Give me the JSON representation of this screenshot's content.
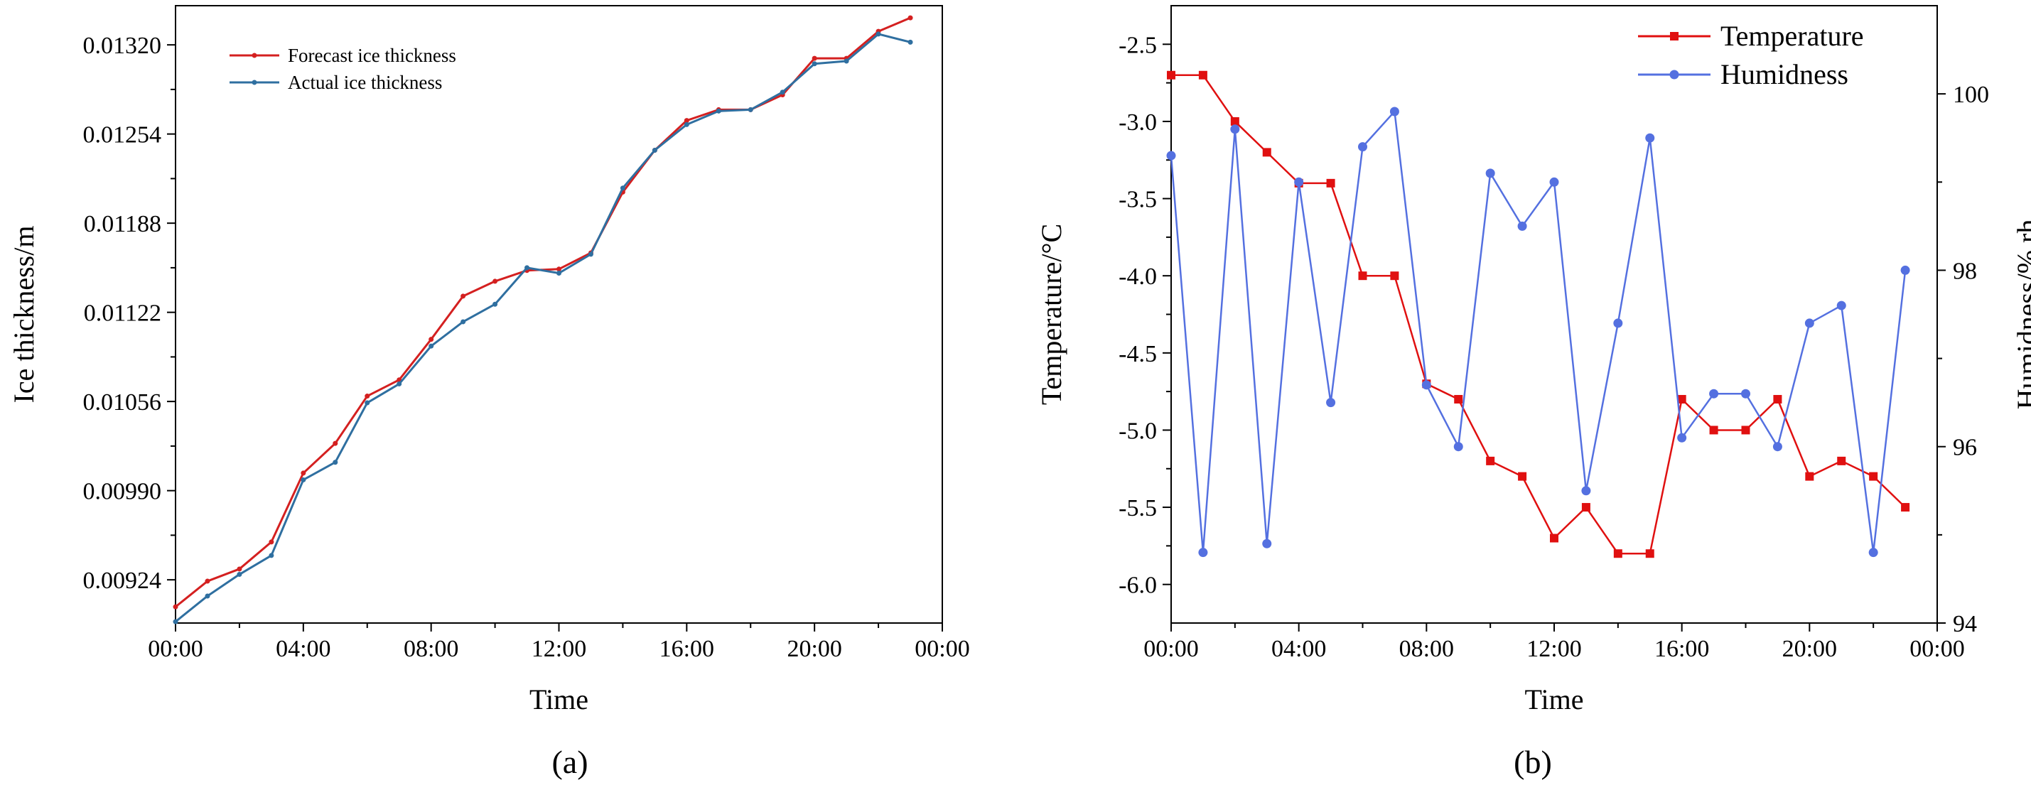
{
  "chart_data": [
    {
      "type": "line",
      "panel_label": "(a)",
      "xlabel": "Time",
      "ylabel": "Ice thickness/m",
      "x": [
        0,
        1,
        2,
        3,
        4,
        5,
        6,
        7,
        8,
        9,
        10,
        11,
        12,
        13,
        14,
        15,
        16,
        17,
        18,
        19,
        20,
        21,
        22,
        23
      ],
      "xlim": [
        0,
        24
      ],
      "x_ticks": [
        0,
        4,
        8,
        12,
        16,
        20,
        24
      ],
      "x_tick_labels": [
        "00:00",
        "04:00",
        "08:00",
        "12:00",
        "16:00",
        "20:00",
        "00:00"
      ],
      "ylim": [
        0.00892,
        0.01349
      ],
      "y_ticks": [
        0.00924,
        0.0099,
        0.01056,
        0.01122,
        0.01188,
        0.01254,
        0.0132
      ],
      "y_tick_labels": [
        "0.00924",
        "0.00990",
        "0.01056",
        "0.01122",
        "0.01188",
        "0.01254",
        "0.01320"
      ],
      "legend_position": "top-left",
      "series": [
        {
          "name": "Forecast ice thickness",
          "color": "#d42020",
          "marker": "dot",
          "values": [
            0.00904,
            0.00923,
            0.00932,
            0.00952,
            0.01003,
            0.01025,
            0.0106,
            0.01072,
            0.01102,
            0.01134,
            0.01145,
            0.01153,
            0.01154,
            0.01166,
            0.01211,
            0.01242,
            0.01264,
            0.01272,
            0.01272,
            0.01283,
            0.0131,
            0.0131,
            0.0133,
            0.0134
          ]
        },
        {
          "name": "Actual ice thickness",
          "color": "#2f6fa0",
          "marker": "dot",
          "values": [
            0.00893,
            0.00912,
            0.00928,
            0.00942,
            0.00998,
            0.01011,
            0.01055,
            0.01069,
            0.01097,
            0.01115,
            0.01128,
            0.01155,
            0.01151,
            0.01165,
            0.01214,
            0.01242,
            0.01261,
            0.01271,
            0.01272,
            0.01285,
            0.01306,
            0.01308,
            0.01328,
            0.01322
          ]
        }
      ]
    },
    {
      "type": "line",
      "panel_label": "(b)",
      "xlabel": "Time",
      "ylabel": "Temperature/°C",
      "y2label": "Humidness/% rh",
      "x": [
        0,
        1,
        2,
        3,
        4,
        5,
        6,
        7,
        8,
        9,
        10,
        11,
        12,
        13,
        14,
        15,
        16,
        17,
        18,
        19,
        20,
        21,
        22,
        23
      ],
      "xlim": [
        0,
        24
      ],
      "x_ticks": [
        0,
        4,
        8,
        12,
        16,
        20,
        24
      ],
      "x_tick_labels": [
        "00:00",
        "04:00",
        "08:00",
        "12:00",
        "16:00",
        "20:00",
        "00:00"
      ],
      "ylim": [
        -6.25,
        -2.25
      ],
      "y_ticks": [
        -6.0,
        -5.5,
        -5.0,
        -4.5,
        -4.0,
        -3.5,
        -3.0,
        -2.5
      ],
      "y_tick_labels": [
        "-6.0",
        "-5.5",
        "-5.0",
        "-4.5",
        "-4.0",
        "-3.5",
        "-3.0",
        "-2.5"
      ],
      "y2lim": [
        94,
        101
      ],
      "y2_ticks": [
        94,
        96,
        98,
        100
      ],
      "y2_tick_labels": [
        "94",
        "96",
        "98",
        "100"
      ],
      "legend_position": "top-right",
      "series": [
        {
          "name": "Temperature",
          "color": "#e01010",
          "marker": "square",
          "axis": "left",
          "values": [
            -2.7,
            -2.7,
            -3.0,
            -3.2,
            -3.4,
            -3.4,
            -4.0,
            -4.0,
            -4.7,
            -4.8,
            -5.2,
            -5.3,
            -5.7,
            -5.5,
            -5.8,
            -5.8,
            -4.8,
            -5.0,
            -5.0,
            -4.8,
            -5.3,
            -5.2,
            -5.3,
            -5.5
          ]
        },
        {
          "name": "Humidness",
          "color": "#5470e0",
          "marker": "circle",
          "axis": "right",
          "values": [
            99.3,
            94.8,
            99.6,
            94.9,
            99.0,
            96.5,
            99.4,
            99.8,
            96.7,
            96.0,
            99.1,
            98.5,
            99.0,
            95.5,
            97.4,
            99.5,
            96.1,
            96.6,
            96.6,
            96.0,
            97.4,
            97.6,
            94.8,
            98.0
          ]
        }
      ]
    }
  ]
}
